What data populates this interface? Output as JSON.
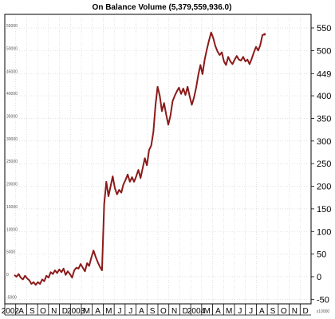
{
  "chart_data": {
    "type": "line",
    "title": "On Balance Volume (5,379,559,936.0)",
    "xlabel": "",
    "ylabel": "",
    "y_scale_label": "x10000",
    "ylim": [
      -60,
      580
    ],
    "grid": true,
    "line_color": "#8b1a1a",
    "right_ticks": [
      "-50",
      "0",
      "50",
      "100",
      "150",
      "200",
      "250",
      "300",
      "350",
      "400",
      "449",
      "500",
      "550"
    ],
    "right_tick_values": [
      -50,
      0,
      50,
      100,
      150,
      200,
      250,
      300,
      350,
      400,
      449,
      500,
      550
    ],
    "left_ticks": [
      "-5000",
      "0",
      "5000",
      "10000",
      "15000",
      "20000",
      "25000",
      "30000",
      "35000",
      "40000",
      "45000",
      "50000",
      "55000"
    ],
    "month_labels": [
      "2002",
      "A",
      "S",
      "O",
      "N",
      "D",
      "2003",
      "M",
      "A",
      "M",
      "J",
      "J",
      "A",
      "S",
      "O",
      "N",
      "D",
      "2004",
      "M",
      "A",
      "M",
      "J",
      "J",
      "A",
      "S",
      "O",
      "N",
      "D"
    ],
    "x_range": [
      0,
      138
    ],
    "series": [
      {
        "values": [
          [
            0,
            4
          ],
          [
            1,
            0
          ],
          [
            2,
            6
          ],
          [
            3,
            -2
          ],
          [
            4,
            -6
          ],
          [
            5,
            2
          ],
          [
            6,
            -4
          ],
          [
            7,
            -8
          ],
          [
            8,
            -16
          ],
          [
            9,
            -12
          ],
          [
            10,
            -18
          ],
          [
            11,
            -12
          ],
          [
            12,
            -16
          ],
          [
            13,
            -6
          ],
          [
            14,
            -10
          ],
          [
            15,
            2
          ],
          [
            16,
            -2
          ],
          [
            17,
            10
          ],
          [
            18,
            6
          ],
          [
            19,
            14
          ],
          [
            20,
            8
          ],
          [
            21,
            16
          ],
          [
            22,
            10
          ],
          [
            23,
            18
          ],
          [
            24,
            4
          ],
          [
            25,
            12
          ],
          [
            26,
            6
          ],
          [
            27,
            -2
          ],
          [
            28,
            14
          ],
          [
            29,
            20
          ],
          [
            30,
            18
          ],
          [
            31,
            28
          ],
          [
            32,
            20
          ],
          [
            33,
            12
          ],
          [
            34,
            30
          ],
          [
            35,
            24
          ],
          [
            36,
            42
          ],
          [
            37,
            58
          ],
          [
            38,
            44
          ],
          [
            39,
            32
          ],
          [
            40,
            22
          ],
          [
            41,
            14
          ],
          [
            42,
            160
          ],
          [
            43,
            210
          ],
          [
            44,
            178
          ],
          [
            45,
            200
          ],
          [
            46,
            222
          ],
          [
            47,
            196
          ],
          [
            48,
            182
          ],
          [
            49,
            192
          ],
          [
            50,
            186
          ],
          [
            51,
            204
          ],
          [
            52,
            214
          ],
          [
            53,
            226
          ],
          [
            54,
            210
          ],
          [
            55,
            220
          ],
          [
            56,
            210
          ],
          [
            57,
            222
          ],
          [
            58,
            236
          ],
          [
            59,
            218
          ],
          [
            60,
            240
          ],
          [
            61,
            262
          ],
          [
            62,
            246
          ],
          [
            63,
            280
          ],
          [
            64,
            290
          ],
          [
            65,
            320
          ],
          [
            66,
            380
          ],
          [
            67,
            420
          ],
          [
            68,
            400
          ],
          [
            69,
            366
          ],
          [
            70,
            384
          ],
          [
            71,
            358
          ],
          [
            72,
            336
          ],
          [
            73,
            356
          ],
          [
            74,
            388
          ],
          [
            75,
            400
          ],
          [
            76,
            410
          ],
          [
            77,
            418
          ],
          [
            78,
            404
          ],
          [
            79,
            416
          ],
          [
            80,
            402
          ],
          [
            81,
            420
          ],
          [
            82,
            398
          ],
          [
            83,
            380
          ],
          [
            84,
            396
          ],
          [
            85,
            418
          ],
          [
            86,
            446
          ],
          [
            87,
            468
          ],
          [
            88,
            448
          ],
          [
            89,
            480
          ],
          [
            90,
            502
          ],
          [
            91,
            522
          ],
          [
            92,
            540
          ],
          [
            93,
            528
          ],
          [
            94,
            510
          ],
          [
            95,
            498
          ],
          [
            96,
            490
          ],
          [
            97,
            496
          ],
          [
            98,
            476
          ],
          [
            99,
            468
          ],
          [
            100,
            486
          ],
          [
            101,
            476
          ],
          [
            102,
            470
          ],
          [
            103,
            480
          ],
          [
            104,
            488
          ],
          [
            105,
            480
          ],
          [
            106,
            478
          ],
          [
            107,
            486
          ],
          [
            108,
            476
          ],
          [
            109,
            480
          ],
          [
            110,
            470
          ],
          [
            111,
            482
          ],
          [
            112,
            496
          ],
          [
            113,
            508
          ],
          [
            114,
            500
          ],
          [
            115,
            512
          ],
          [
            116,
            534
          ],
          [
            117,
            536
          ]
        ]
      }
    ]
  }
}
